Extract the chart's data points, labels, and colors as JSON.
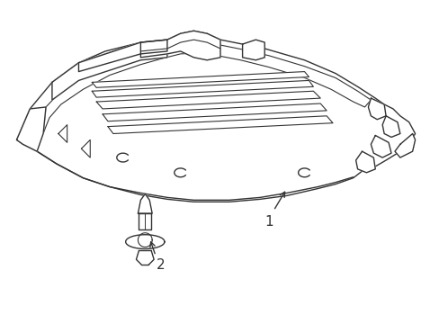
{
  "background_color": "#ffffff",
  "line_color": "#333333",
  "line_width": 1.0,
  "fig_width": 4.89,
  "fig_height": 3.6,
  "dpi": 100,
  "label1_text": "1",
  "label2_text": "2"
}
